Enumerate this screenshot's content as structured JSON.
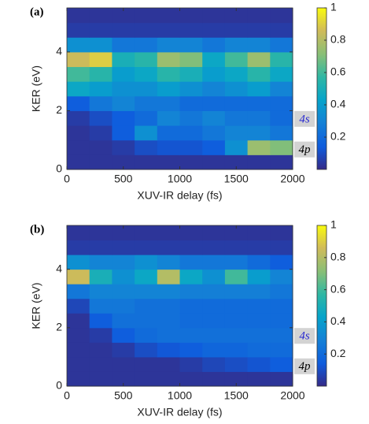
{
  "chart_data": [
    {
      "type": "heatmap",
      "panel_label": "(a)",
      "xlabel": "XUV-IR delay (fs)",
      "ylabel": "KER (eV)",
      "xlim": [
        0,
        2000
      ],
      "ylim": [
        0,
        5.5
      ],
      "xticks": [
        0,
        500,
        1000,
        1500,
        2000
      ],
      "yticks": [
        0,
        2,
        4
      ],
      "colormap": "parula",
      "clim": [
        0,
        1
      ],
      "cticks": [
        0.2,
        0.4,
        0.6,
        0.8,
        1
      ],
      "x_edges": [
        0,
        200,
        400,
        600,
        800,
        1000,
        1200,
        1400,
        1600,
        1800,
        2000
      ],
      "y_edges": [
        0,
        0.5,
        1,
        1.5,
        2,
        2.5,
        3,
        3.5,
        4,
        4.5,
        5,
        5.5
      ],
      "z": [
        [
          0.03,
          0.03,
          0.03,
          0.03,
          0.03,
          0.03,
          0.03,
          0.03,
          0.03,
          0.03
        ],
        [
          0.03,
          0.03,
          0.05,
          0.1,
          0.12,
          0.12,
          0.15,
          0.35,
          0.75,
          0.7
        ],
        [
          0.03,
          0.05,
          0.15,
          0.35,
          0.2,
          0.2,
          0.25,
          0.3,
          0.3,
          0.25
        ],
        [
          0.05,
          0.1,
          0.15,
          0.2,
          0.3,
          0.25,
          0.3,
          0.25,
          0.25,
          0.2
        ],
        [
          0.15,
          0.25,
          0.3,
          0.25,
          0.25,
          0.2,
          0.2,
          0.2,
          0.2,
          0.2
        ],
        [
          0.45,
          0.4,
          0.35,
          0.35,
          0.4,
          0.35,
          0.3,
          0.35,
          0.4,
          0.3
        ],
        [
          0.6,
          0.55,
          0.4,
          0.45,
          0.55,
          0.5,
          0.4,
          0.45,
          0.55,
          0.45
        ],
        [
          0.85,
          0.9,
          0.5,
          0.55,
          0.75,
          0.7,
          0.45,
          0.6,
          0.75,
          0.55
        ],
        [
          0.35,
          0.35,
          0.25,
          0.25,
          0.3,
          0.3,
          0.25,
          0.3,
          0.3,
          0.25
        ],
        [
          0.05,
          0.05,
          0.05,
          0.05,
          0.05,
          0.05,
          0.05,
          0.05,
          0.05,
          0.05
        ],
        [
          0.03,
          0.03,
          0.03,
          0.03,
          0.03,
          0.03,
          0.03,
          0.03,
          0.03,
          0.03
        ]
      ],
      "annotations": [
        {
          "text": "4s",
          "color": "#2a2ad0"
        },
        {
          "text": "4p",
          "color": "#000000"
        }
      ]
    },
    {
      "type": "heatmap",
      "panel_label": "(b)",
      "xlabel": "XUV-IR delay (fs)",
      "ylabel": "KER (eV)",
      "xlim": [
        0,
        2000
      ],
      "ylim": [
        0,
        5.5
      ],
      "xticks": [
        0,
        500,
        1000,
        1500,
        2000
      ],
      "yticks": [
        0,
        2,
        4
      ],
      "colormap": "parula",
      "clim": [
        0,
        1
      ],
      "cticks": [
        0.2,
        0.4,
        0.6,
        0.8,
        1
      ],
      "x_edges": [
        0,
        200,
        400,
        600,
        800,
        1000,
        1200,
        1400,
        1600,
        1800,
        2000
      ],
      "y_edges": [
        0,
        0.5,
        1,
        1.5,
        2,
        2.5,
        3,
        3.5,
        4,
        4.5,
        5,
        5.5
      ],
      "z": [
        [
          0.03,
          0.03,
          0.03,
          0.03,
          0.03,
          0.03,
          0.03,
          0.03,
          0.03,
          0.03
        ],
        [
          0.03,
          0.03,
          0.03,
          0.03,
          0.03,
          0.05,
          0.08,
          0.1,
          0.12,
          0.15
        ],
        [
          0.03,
          0.03,
          0.05,
          0.1,
          0.13,
          0.15,
          0.18,
          0.18,
          0.2,
          0.2
        ],
        [
          0.03,
          0.05,
          0.15,
          0.2,
          0.22,
          0.22,
          0.22,
          0.22,
          0.22,
          0.22
        ],
        [
          0.03,
          0.15,
          0.22,
          0.22,
          0.22,
          0.2,
          0.2,
          0.2,
          0.2,
          0.2
        ],
        [
          0.08,
          0.25,
          0.25,
          0.22,
          0.22,
          0.2,
          0.2,
          0.2,
          0.2,
          0.2
        ],
        [
          0.25,
          0.3,
          0.3,
          0.3,
          0.3,
          0.28,
          0.28,
          0.28,
          0.28,
          0.25
        ],
        [
          0.85,
          0.5,
          0.35,
          0.45,
          0.8,
          0.45,
          0.35,
          0.6,
          0.4,
          0.3
        ],
        [
          0.35,
          0.3,
          0.3,
          0.35,
          0.3,
          0.25,
          0.25,
          0.25,
          0.2,
          0.15
        ],
        [
          0.05,
          0.05,
          0.05,
          0.05,
          0.05,
          0.05,
          0.05,
          0.05,
          0.05,
          0.05
        ],
        [
          0.03,
          0.03,
          0.03,
          0.03,
          0.03,
          0.03,
          0.03,
          0.03,
          0.03,
          0.03
        ]
      ],
      "annotations": [
        {
          "text": "4s",
          "color": "#2a2ad0"
        },
        {
          "text": "4p",
          "color": "#000000"
        }
      ]
    }
  ]
}
